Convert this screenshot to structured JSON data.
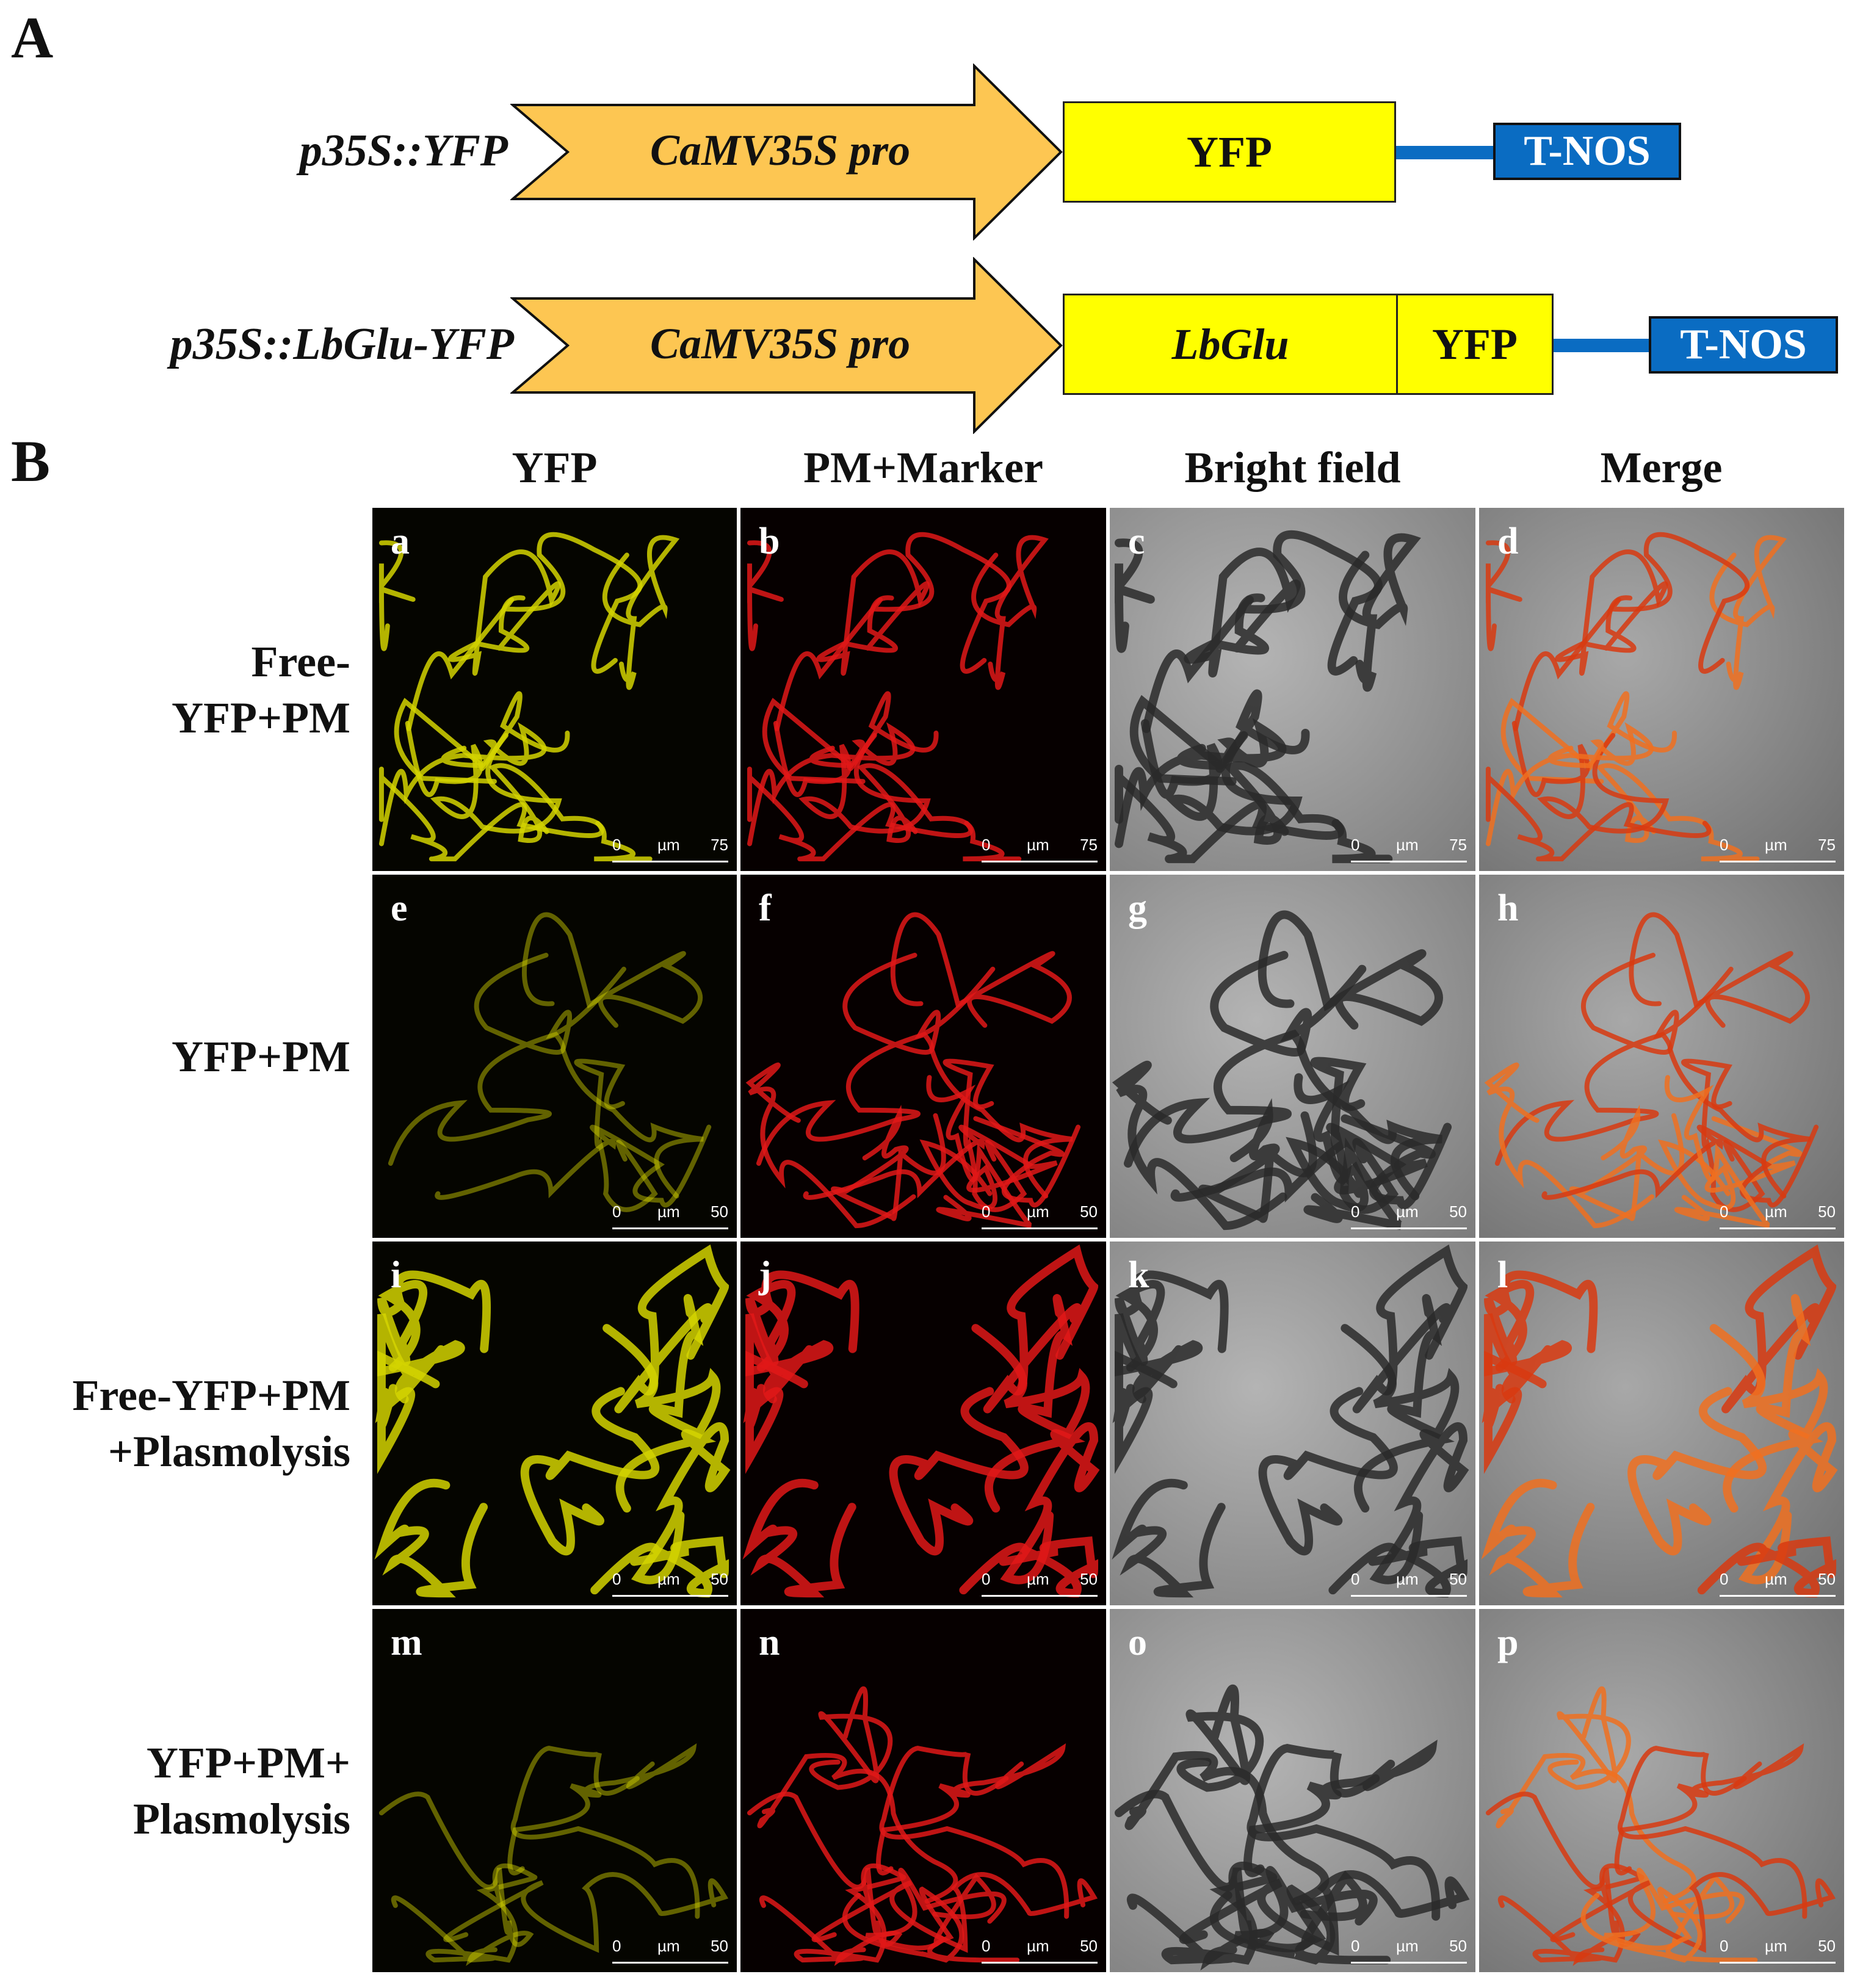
{
  "section_a": {
    "letter": "A",
    "constructs": [
      {
        "label": "p35S::YFP",
        "promoter": "CaMV35S pro",
        "boxes": [
          "YFP"
        ],
        "terminator": "T-NOS"
      },
      {
        "label": "p35S::LbGlu-YFP",
        "promoter": "CaMV35S pro",
        "boxes": [
          "LbGlu",
          "YFP"
        ],
        "terminator": "T-NOS"
      }
    ],
    "colors": {
      "promoter": "#fdc652",
      "gene": "#ffff00",
      "terminator": "#0a6cc2"
    }
  },
  "section_b": {
    "letter": "B",
    "columns": [
      "YFP",
      "PM+Marker",
      "Bright field",
      "Merge"
    ],
    "rows": [
      {
        "label_lines": [
          "Free-",
          "YFP+PM"
        ],
        "letters": [
          "a",
          "b",
          "c",
          "d"
        ],
        "scale": {
          "start": "0",
          "unit": "µm",
          "end": "75"
        }
      },
      {
        "label_lines": [
          "YFP+PM"
        ],
        "letters": [
          "e",
          "f",
          "g",
          "h"
        ],
        "scale": {
          "start": "0",
          "unit": "µm",
          "end": "50"
        }
      },
      {
        "label_lines": [
          "Free-YFP+PM",
          "+Plasmolysis"
        ],
        "letters": [
          "i",
          "j",
          "k",
          "l"
        ],
        "scale": {
          "start": "0",
          "unit": "µm",
          "end": "50"
        }
      },
      {
        "label_lines": [
          "YFP+PM+",
          "Plasmolysis"
        ],
        "letters": [
          "m",
          "n",
          "o",
          "p"
        ],
        "scale": {
          "start": "0",
          "unit": "µm",
          "end": "50"
        }
      }
    ],
    "channel_colors": {
      "yfp": "#d4d400",
      "pm": "#e01818",
      "bright_field": "#9c9c9c",
      "merge": "#f07020"
    }
  }
}
